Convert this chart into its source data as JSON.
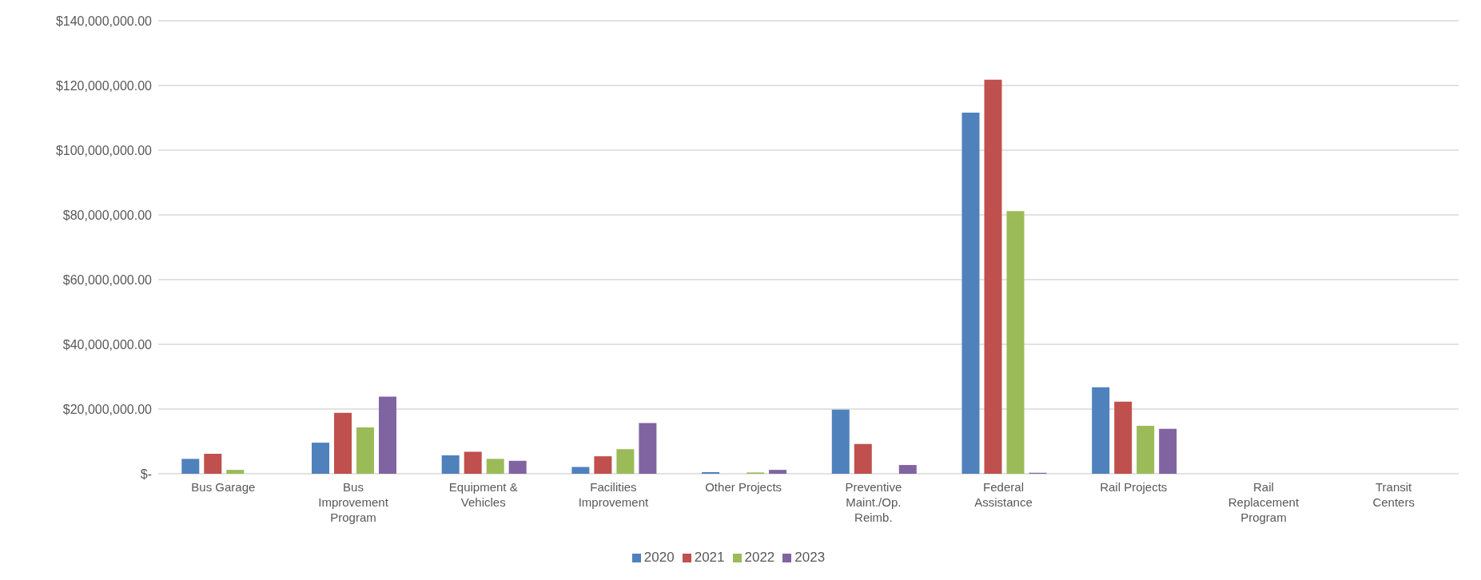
{
  "chart_data": {
    "type": "bar",
    "categories": [
      "Bus Garage",
      "Bus Improvement Program",
      "Equipment & Vehicles",
      "Facilities Improvement",
      "Other Projects",
      "Preventive Maint./Op. Reimb.",
      "Federal Assistance",
      "Rail Projects",
      "Rail Replacement Program",
      "Transit Centers"
    ],
    "series": [
      {
        "name": "2020",
        "color": "#4f81bd",
        "values": [
          4600000,
          9600000,
          5700000,
          2100000,
          500000,
          19800000,
          111600000,
          26700000,
          0,
          0
        ]
      },
      {
        "name": "2021",
        "color": "#c0504d",
        "values": [
          6200000,
          18800000,
          6800000,
          5400000,
          0,
          9200000,
          121800000,
          22300000,
          0,
          0
        ]
      },
      {
        "name": "2022",
        "color": "#9bbb59",
        "values": [
          1200000,
          14300000,
          4600000,
          7600000,
          400000,
          0,
          81200000,
          14800000,
          0,
          0
        ]
      },
      {
        "name": "2023",
        "color": "#8064a2",
        "values": [
          0,
          23800000,
          4000000,
          15700000,
          1200000,
          2700000,
          300000,
          13900000,
          0,
          0
        ]
      }
    ],
    "ylim": [
      0,
      140000000
    ],
    "yticks": [
      {
        "value": 0,
        "label": "$-"
      },
      {
        "value": 20000000,
        "label": "$20,000,000.00"
      },
      {
        "value": 40000000,
        "label": "$40,000,000.00"
      },
      {
        "value": 60000000,
        "label": "$60,000,000.00"
      },
      {
        "value": 80000000,
        "label": "$80,000,000.00"
      },
      {
        "value": 100000000,
        "label": "$100,000,000.00"
      },
      {
        "value": 120000000,
        "label": "$120,000,000.00"
      },
      {
        "value": 140000000,
        "label": "$140,000,000.00"
      }
    ],
    "grid": "y",
    "legend": "bottom"
  }
}
